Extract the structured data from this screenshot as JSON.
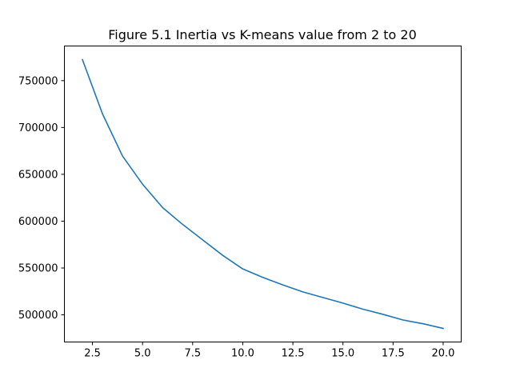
{
  "chart_data": {
    "type": "line",
    "title": "Figure 5.1 Inertia vs K-means value from 2 to 20",
    "xlabel": "",
    "ylabel": "",
    "grid": false,
    "xlim": [
      1.1,
      20.9
    ],
    "ylim": [
      471000,
      787000
    ],
    "xticks": [
      2.5,
      5.0,
      7.5,
      10.0,
      12.5,
      15.0,
      17.5,
      20.0
    ],
    "xtick_labels": [
      "2.5",
      "5.0",
      "7.5",
      "10.0",
      "12.5",
      "15.0",
      "17.5",
      "20.0"
    ],
    "yticks": [
      500000,
      550000,
      600000,
      650000,
      700000,
      750000
    ],
    "ytick_labels": [
      "500000",
      "550000",
      "600000",
      "650000",
      "700000",
      "750000"
    ],
    "series": [
      {
        "name": "",
        "color": "#1f77b4",
        "x": [
          2,
          3,
          4,
          5,
          6,
          7,
          8,
          9,
          10,
          11,
          12,
          13,
          14,
          15,
          16,
          17,
          18,
          19,
          20
        ],
        "y": [
          772500,
          714500,
          669500,
          639500,
          614500,
          596500,
          580000,
          563500,
          549000,
          540000,
          532000,
          524500,
          518500,
          512500,
          506000,
          500500,
          494500,
          490500,
          485500
        ]
      }
    ]
  }
}
